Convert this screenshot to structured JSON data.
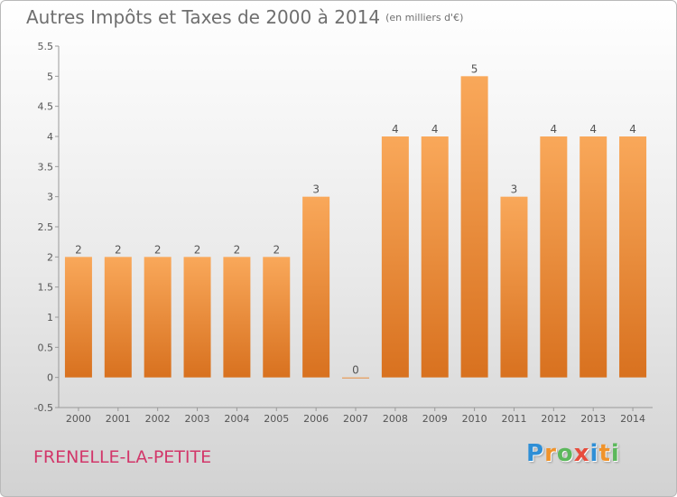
{
  "title": "Autres Impôts et Taxes de 2000 à 2014",
  "unit_note": "(en milliers d'€)",
  "location": "FRENELLE-LA-PETITE",
  "brand": {
    "letters": [
      "P",
      "r",
      "o",
      "x",
      "i",
      "t",
      "i"
    ],
    "colors": [
      "#2f8fd6",
      "#f0932b",
      "#5cb85c",
      "#e74c3c",
      "#2f8fd6",
      "#f0932b",
      "#5cb85c"
    ]
  },
  "colors": {
    "bar_top": "#f9a85a",
    "bar_bottom": "#d8711f",
    "title": "#6f6f6f",
    "location": "#d2376a"
  },
  "chart_data": {
    "type": "bar",
    "categories": [
      "2000",
      "2001",
      "2002",
      "2003",
      "2004",
      "2005",
      "2006",
      "2007",
      "2008",
      "2009",
      "2010",
      "2011",
      "2012",
      "2013",
      "2014"
    ],
    "values": [
      2,
      2,
      2,
      2,
      2,
      2,
      3,
      0,
      4,
      4,
      5,
      3,
      4,
      4,
      4
    ],
    "data_labels": [
      "2",
      "2",
      "2",
      "2",
      "2",
      "2",
      "3",
      "0",
      "4",
      "4",
      "5",
      "3",
      "4",
      "4",
      "4"
    ],
    "title": "Autres Impôts et Taxes de 2000 à 2014",
    "xlabel": "",
    "ylabel": "",
    "ylim": [
      -0.5,
      5.5
    ],
    "yticks": [
      "-0.5",
      "0",
      "0.5",
      "1",
      "1.5",
      "2",
      "2.5",
      "3",
      "3.5",
      "4",
      "4.5",
      "5",
      "5.5"
    ],
    "grid": false,
    "legend": "none"
  }
}
